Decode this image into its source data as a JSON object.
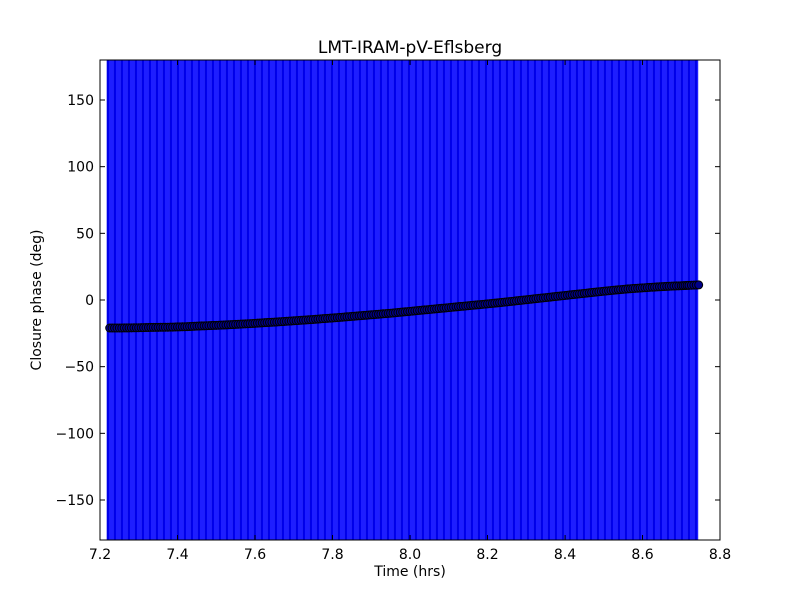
{
  "chart_data": {
    "type": "scatter",
    "title": "LMT-IRAM-pV-Eflsberg",
    "xlabel": "Time (hrs)",
    "ylabel": "Closure phase (deg)",
    "xlim": [
      7.2,
      8.8
    ],
    "ylim": [
      -180,
      180
    ],
    "x_ticks": [
      "7.2",
      "7.4",
      "7.6",
      "7.8",
      "8.0",
      "8.2",
      "8.4",
      "8.6",
      "8.8"
    ],
    "y_ticks": [
      "150",
      "100",
      "50",
      "0",
      "−50",
      "−100",
      "−150"
    ],
    "x_tick_values": [
      7.2,
      7.4,
      7.6,
      7.8,
      8.0,
      8.2,
      8.4,
      8.6,
      8.8
    ],
    "y_tick_values": [
      150,
      100,
      50,
      0,
      -50,
      -100,
      -150
    ],
    "grid": false,
    "marker_color": "#00008b",
    "marker_edge_color": "#000000",
    "errorbar_color": "#0000ff",
    "errorbar_x_range": [
      7.22,
      8.745
    ],
    "errorbar_y_range": [
      -180,
      180
    ],
    "points": [
      [
        7.225,
        -21.0
      ],
      [
        7.25,
        -21.0
      ],
      [
        7.275,
        -20.9
      ],
      [
        7.3,
        -20.8
      ],
      [
        7.325,
        -20.6
      ],
      [
        7.35,
        -20.5
      ],
      [
        7.375,
        -20.4
      ],
      [
        7.4,
        -20.2
      ],
      [
        7.425,
        -20.0
      ],
      [
        7.45,
        -19.6
      ],
      [
        7.475,
        -19.3
      ],
      [
        7.5,
        -19.0
      ],
      [
        7.525,
        -18.7
      ],
      [
        7.55,
        -18.3
      ],
      [
        7.575,
        -17.9
      ],
      [
        7.6,
        -17.5
      ],
      [
        7.625,
        -17.0
      ],
      [
        7.65,
        -16.6
      ],
      [
        7.675,
        -16.1
      ],
      [
        7.7,
        -15.6
      ],
      [
        7.725,
        -15.1
      ],
      [
        7.75,
        -14.6
      ],
      [
        7.775,
        -14.0
      ],
      [
        7.8,
        -13.5
      ],
      [
        7.825,
        -12.9
      ],
      [
        7.85,
        -12.3
      ],
      [
        7.875,
        -11.7
      ],
      [
        7.9,
        -11.1
      ],
      [
        7.925,
        -10.5
      ],
      [
        7.95,
        -9.9
      ],
      [
        7.975,
        -9.2
      ],
      [
        8.0,
        -8.5
      ],
      [
        8.025,
        -7.8
      ],
      [
        8.05,
        -7.1
      ],
      [
        8.075,
        -6.4
      ],
      [
        8.1,
        -5.7
      ],
      [
        8.125,
        -5.0
      ],
      [
        8.15,
        -4.3
      ],
      [
        8.175,
        -3.6
      ],
      [
        8.2,
        -2.9
      ],
      [
        8.225,
        -2.2
      ],
      [
        8.25,
        -1.4
      ],
      [
        8.275,
        -0.6
      ],
      [
        8.3,
        0.2
      ],
      [
        8.325,
        1.0
      ],
      [
        8.35,
        1.8
      ],
      [
        8.375,
        2.6
      ],
      [
        8.4,
        3.4
      ],
      [
        8.425,
        4.2
      ],
      [
        8.45,
        5.0
      ],
      [
        8.475,
        5.8
      ],
      [
        8.5,
        6.6
      ],
      [
        8.525,
        7.3
      ],
      [
        8.55,
        8.0
      ],
      [
        8.575,
        8.6
      ],
      [
        8.6,
        9.1
      ],
      [
        8.625,
        9.6
      ],
      [
        8.65,
        10.0
      ],
      [
        8.675,
        10.4
      ],
      [
        8.7,
        10.7
      ],
      [
        8.72,
        11.0
      ],
      [
        8.745,
        11.3
      ]
    ]
  }
}
